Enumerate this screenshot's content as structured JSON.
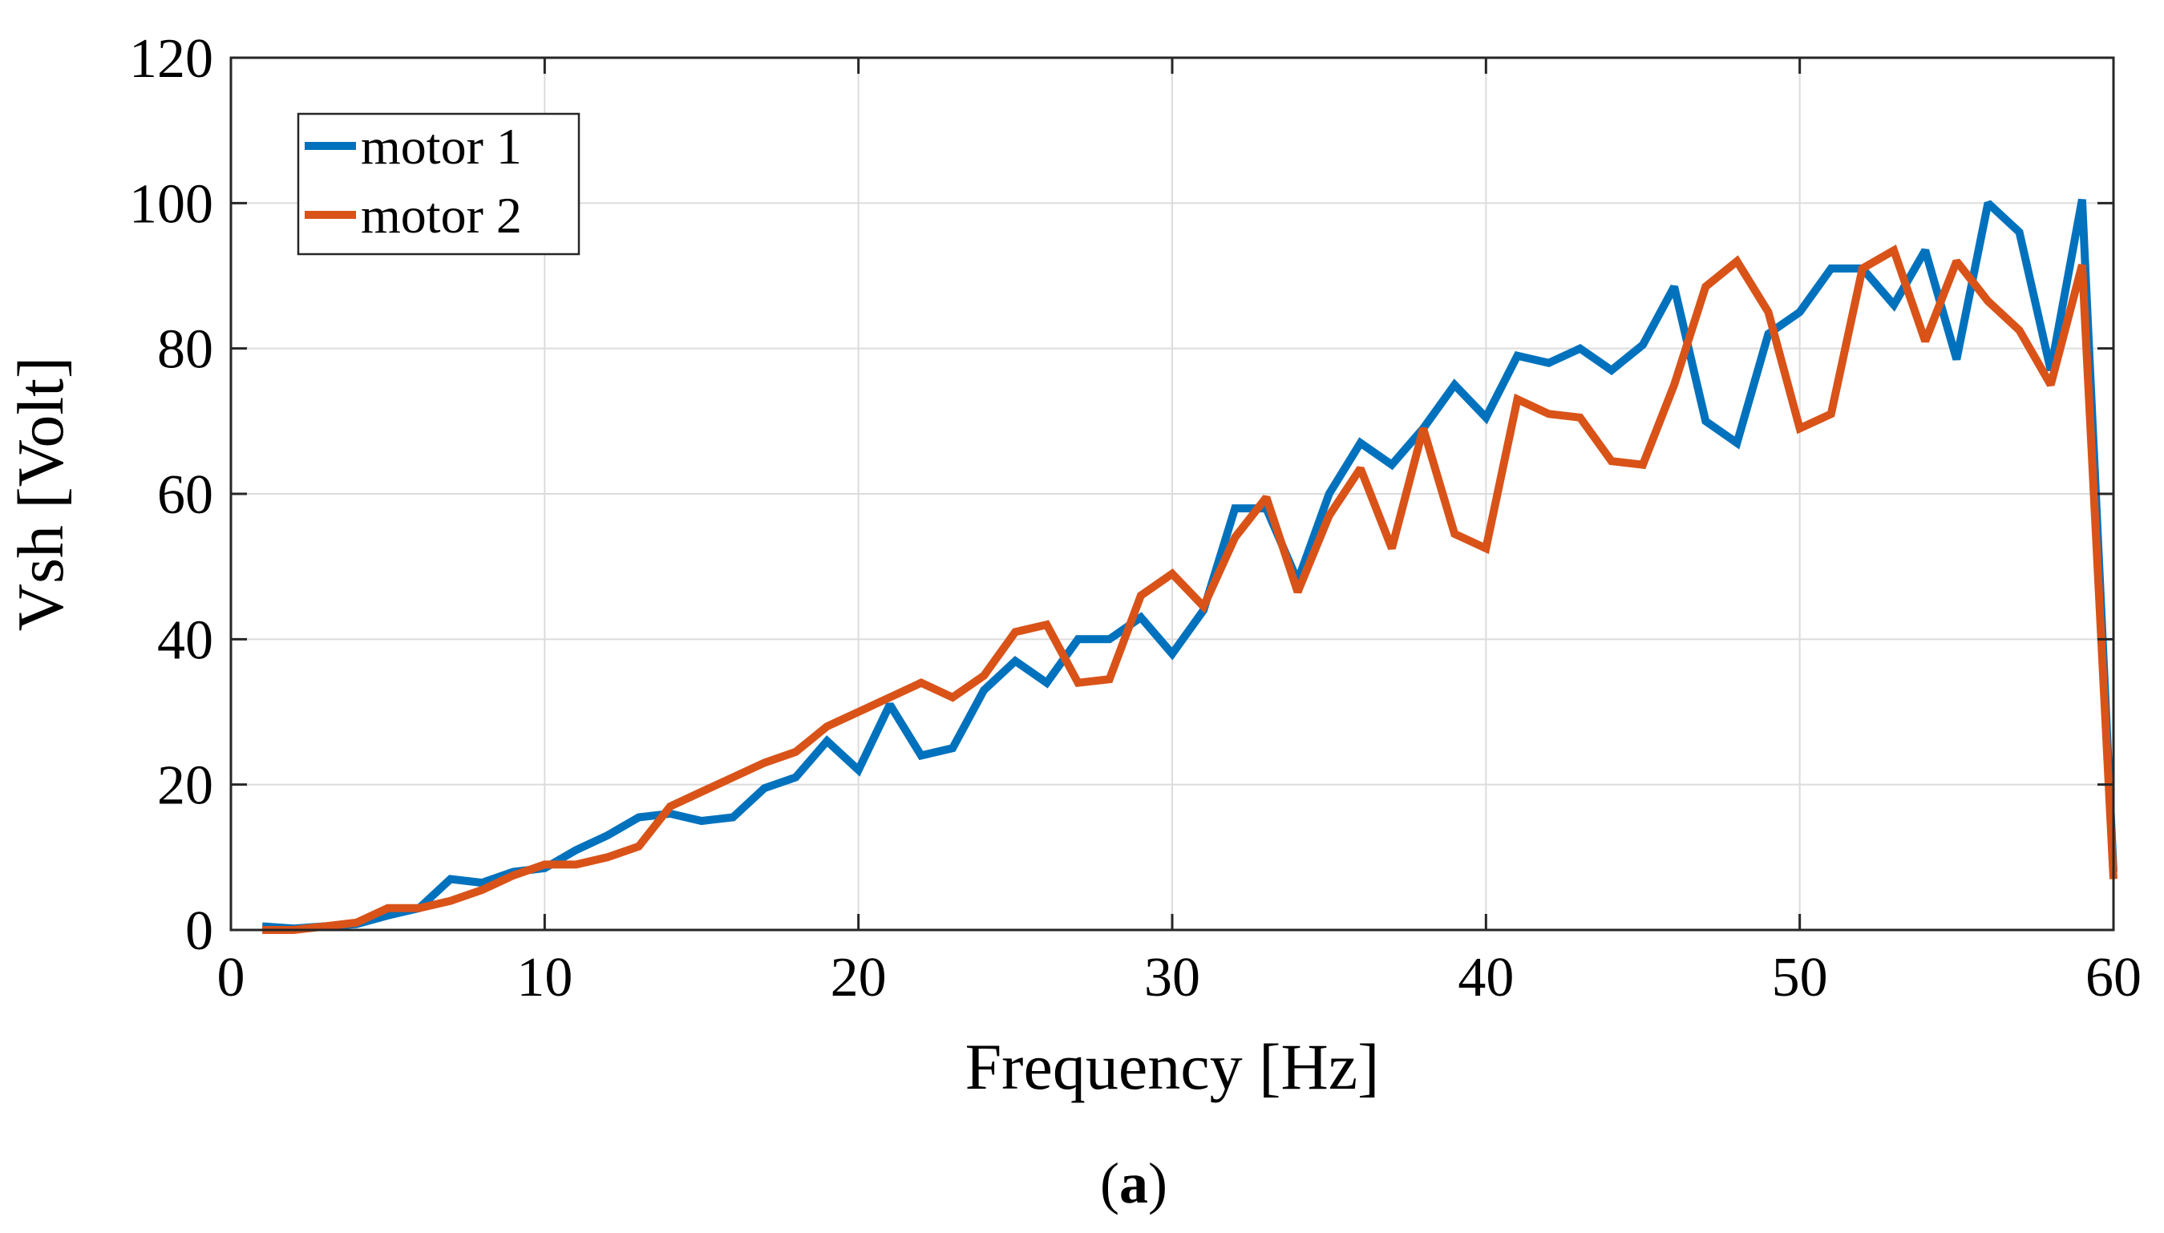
{
  "chart_data": {
    "type": "line",
    "title": "",
    "xlabel": "Frequency [Hz]",
    "ylabel": "Vsh [Volt]",
    "caption_letter": "a",
    "xlim": [
      0,
      60
    ],
    "ylim": [
      0,
      120
    ],
    "xticks": [
      0,
      10,
      20,
      30,
      40,
      50,
      60
    ],
    "yticks": [
      0,
      20,
      40,
      60,
      80,
      100,
      120
    ],
    "grid": true,
    "legend_position": "top-left",
    "x": [
      1,
      2,
      3,
      4,
      5,
      6,
      7,
      8,
      9,
      10,
      11,
      12,
      13,
      14,
      15,
      16,
      17,
      18,
      19,
      20,
      21,
      22,
      23,
      24,
      25,
      26,
      27,
      28,
      29,
      30,
      31,
      32,
      33,
      34,
      35,
      36,
      37,
      38,
      39,
      40,
      41,
      42,
      43,
      44,
      45,
      46,
      47,
      48,
      49,
      50,
      51,
      52,
      53,
      54,
      55,
      56,
      57,
      58,
      59,
      60
    ],
    "series": [
      {
        "name": "motor 1",
        "color": "#0072BD",
        "values": [
          0.5,
          0.2,
          0.5,
          0.8,
          2.0,
          3.0,
          7.0,
          6.5,
          8.0,
          8.5,
          11.0,
          13.0,
          15.5,
          16.0,
          15.0,
          15.5,
          19.5,
          21.0,
          26.0,
          22.0,
          31.0,
          24.0,
          25.0,
          33.0,
          37.0,
          34.0,
          40.0,
          40.0,
          43.0,
          38.0,
          44.0,
          58.0,
          58.0,
          48.0,
          60.0,
          67.0,
          64.0,
          69.0,
          75.0,
          70.5,
          79.0,
          78.0,
          80.0,
          77.0,
          80.5,
          88.5,
          70.0,
          67.0,
          82.0,
          85.0,
          91.0,
          91.0,
          86.0,
          93.5,
          78.5,
          100.0,
          96.0,
          77.0,
          100.5,
          8.0
        ]
      },
      {
        "name": "motor 2",
        "color": "#D95319",
        "values": [
          0.0,
          0.0,
          0.5,
          1.0,
          3.0,
          3.0,
          4.0,
          5.5,
          7.5,
          9.0,
          9.0,
          10.0,
          11.5,
          17.0,
          19.0,
          21.0,
          23.0,
          24.5,
          28.0,
          30.0,
          32.0,
          34.0,
          32.0,
          35.0,
          41.0,
          42.0,
          34.0,
          34.5,
          46.0,
          49.0,
          44.5,
          54.0,
          59.5,
          46.5,
          57.0,
          63.5,
          52.5,
          69.0,
          54.5,
          52.5,
          73.0,
          71.0,
          70.5,
          64.5,
          64.0,
          75.0,
          88.5,
          92.0,
          85.0,
          69.0,
          71.0,
          91.0,
          93.5,
          81.0,
          92.0,
          86.5,
          82.5,
          75.0,
          91.5,
          7.0
        ]
      }
    ]
  }
}
